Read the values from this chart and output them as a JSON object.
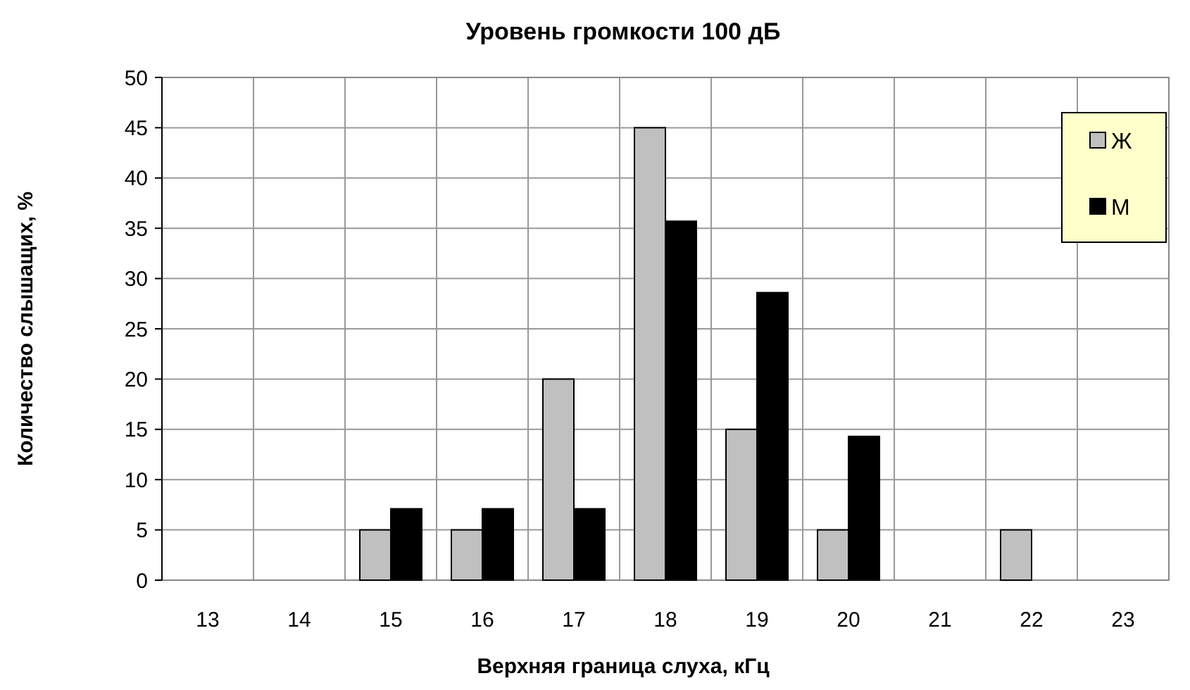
{
  "chart_data": {
    "type": "bar",
    "title": "Уровень громкости 100 дБ",
    "xlabel": "Верхняя граница  слуха, кГц",
    "ylabel": "Количество слышащих, %",
    "categories": [
      "13",
      "14",
      "15",
      "16",
      "17",
      "18",
      "19",
      "20",
      "21",
      "22",
      "23"
    ],
    "series": [
      {
        "name": "Ж",
        "color": "#c0c0c0",
        "values": [
          0,
          0,
          5,
          5,
          20,
          45,
          15,
          5,
          0,
          5,
          0
        ]
      },
      {
        "name": "М",
        "color": "#000000",
        "values": [
          0,
          0,
          7.1,
          7.1,
          7.1,
          35.7,
          28.6,
          14.3,
          0,
          0,
          0
        ]
      }
    ],
    "ylim": [
      0,
      50
    ],
    "yticks": [
      0,
      5,
      10,
      15,
      20,
      25,
      30,
      35,
      40,
      45,
      50
    ],
    "grid": true,
    "legend": "top right"
  }
}
